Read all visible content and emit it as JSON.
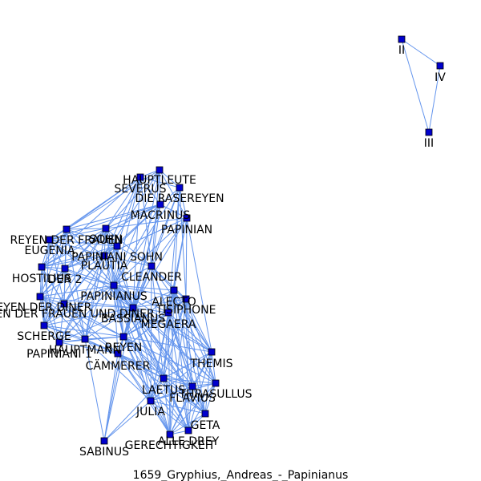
{
  "caption": "1659_Gryphius,_Andreas_-_Papinianus",
  "colors": {
    "edge": "#6495ED",
    "node_fill": "#0000CD",
    "node_stroke": "#000000",
    "text": "#000000"
  },
  "nodes": [
    {
      "id": "HAUPTLEUTE",
      "label": "HAUPTLEUTE"
    },
    {
      "id": "SEVERUS",
      "label": "SEVERUS"
    },
    {
      "id": "DIE_RASEREYEN",
      "label": "DIE RASEREYEN"
    },
    {
      "id": "MACRINUS",
      "label": "MACRINUS"
    },
    {
      "id": "PAPINIAN",
      "label": "PAPINIAN"
    },
    {
      "id": "REYEN_DER_FRAUEN",
      "label": "REYEN DER FRAUEN"
    },
    {
      "id": "SOHN",
      "label": "SOHN"
    },
    {
      "id": "EUGENIA",
      "label": "EUGENIA"
    },
    {
      "id": "PAPINIANI_SOHN",
      "label": "PAPINIANI SOHN"
    },
    {
      "id": "PLAUTIA",
      "label": "PLAUTIA"
    },
    {
      "id": "HOSTILIUS",
      "label": "HOSTILIUS"
    },
    {
      "id": "DER_2",
      "label": "DER 2"
    },
    {
      "id": "CLEANDER",
      "label": "CLEANDER"
    },
    {
      "id": "PAPINIANUS",
      "label": "PAPINIANUS"
    },
    {
      "id": "ALECTO",
      "label": "ALECTO"
    },
    {
      "id": "REYEN_DER_DINER",
      "label": "REYEN DER DINER"
    },
    {
      "id": "TISIPHONE",
      "label": "TISIPHONE"
    },
    {
      "id": "REYEN_DER_FRAUEN_UND_DINER",
      "label": "REYEN DER FRAUEN UND DINER"
    },
    {
      "id": "BASSIANUS",
      "label": "BASSIANUS"
    },
    {
      "id": "MEGAERA",
      "label": "MEGAERA"
    },
    {
      "id": "SCHERGE",
      "label": "SCHERGE"
    },
    {
      "id": "REYEN",
      "label": "REYEN"
    },
    {
      "id": "PAPINIANI_1",
      "label": "PAPINIANI 1"
    },
    {
      "id": "HAUPTMANN",
      "label": "HAUPTMANN"
    },
    {
      "id": "THEMIS",
      "label": "THEMIS"
    },
    {
      "id": "CAMMERER",
      "label": "CÄMMERER"
    },
    {
      "id": "LAETUS",
      "label": "LAETUS"
    },
    {
      "id": "THRASULLUS",
      "label": "THRASULLUS"
    },
    {
      "id": "FLAVIUS",
      "label": "FLAVIUS"
    },
    {
      "id": "JULIA",
      "label": "JULIA"
    },
    {
      "id": "GETA",
      "label": "GETA"
    },
    {
      "id": "ALLE_DREY",
      "label": "ALLE DREY"
    },
    {
      "id": "GERECHTIGKEIT",
      "label": "GERECHTIGKEIT"
    },
    {
      "id": "SABINUS",
      "label": "SABINUS"
    },
    {
      "id": "II",
      "label": "II"
    },
    {
      "id": "IV",
      "label": "IV"
    },
    {
      "id": "III",
      "label": "III"
    }
  ],
  "edges": [
    [
      "II",
      "IV"
    ],
    [
      "IV",
      "III"
    ],
    [
      "II",
      "III"
    ],
    [
      "HAUPTLEUTE",
      "SEVERUS"
    ],
    [
      "HAUPTLEUTE",
      "DIE_RASEREYEN"
    ],
    [
      "HAUPTLEUTE",
      "MACRINUS"
    ],
    [
      "HAUPTLEUTE",
      "SOHN"
    ],
    [
      "HAUPTLEUTE",
      "PLAUTIA"
    ],
    [
      "HAUPTLEUTE",
      "PAPINIANUS"
    ],
    [
      "HAUPTLEUTE",
      "BASSIANUS"
    ],
    [
      "HAUPTLEUTE",
      "CLEANDER"
    ],
    [
      "HAUPTLEUTE",
      "REYEN_DER_FRAUEN"
    ],
    [
      "HAUPTLEUTE",
      "PAPINIAN"
    ],
    [
      "SEVERUS",
      "MACRINUS"
    ],
    [
      "SEVERUS",
      "DIE_RASEREYEN"
    ],
    [
      "SEVERUS",
      "SOHN"
    ],
    [
      "SEVERUS",
      "PLAUTIA"
    ],
    [
      "SEVERUS",
      "PAPINIANUS"
    ],
    [
      "SEVERUS",
      "BASSIANUS"
    ],
    [
      "SEVERUS",
      "REYEN_DER_FRAUEN"
    ],
    [
      "SEVERUS",
      "EUGENIA"
    ],
    [
      "SEVERUS",
      "HOSTILIUS"
    ],
    [
      "SEVERUS",
      "CLEANDER"
    ],
    [
      "SEVERUS",
      "PAPINIANI_SOHN"
    ],
    [
      "DIE_RASEREYEN",
      "MACRINUS"
    ],
    [
      "DIE_RASEREYEN",
      "PAPINIAN"
    ],
    [
      "DIE_RASEREYEN",
      "PAPINIANUS"
    ],
    [
      "DIE_RASEREYEN",
      "ALECTO"
    ],
    [
      "DIE_RASEREYEN",
      "TISIPHONE"
    ],
    [
      "DIE_RASEREYEN",
      "MEGAERA"
    ],
    [
      "DIE_RASEREYEN",
      "BASSIANUS"
    ],
    [
      "DIE_RASEREYEN",
      "CLEANDER"
    ],
    [
      "MACRINUS",
      "PAPINIAN"
    ],
    [
      "MACRINUS",
      "SOHN"
    ],
    [
      "MACRINUS",
      "PLAUTIA"
    ],
    [
      "MACRINUS",
      "PAPINIANUS"
    ],
    [
      "MACRINUS",
      "BASSIANUS"
    ],
    [
      "MACRINUS",
      "CLEANDER"
    ],
    [
      "MACRINUS",
      "PAPINIANI_SOHN"
    ],
    [
      "MACRINUS",
      "REYEN_DER_FRAUEN"
    ],
    [
      "MACRINUS",
      "EUGENIA"
    ],
    [
      "MACRINUS",
      "HOSTILIUS"
    ],
    [
      "MACRINUS",
      "REYEN"
    ],
    [
      "PAPINIAN",
      "CLEANDER"
    ],
    [
      "PAPINIAN",
      "PAPINIANUS"
    ],
    [
      "PAPINIAN",
      "ALECTO"
    ],
    [
      "PAPINIAN",
      "BASSIANUS"
    ],
    [
      "PAPINIAN",
      "TISIPHONE"
    ],
    [
      "PAPINIAN",
      "THEMIS"
    ],
    [
      "PAPINIAN",
      "MEGAERA"
    ],
    [
      "PAPINIAN",
      "PLAUTIA"
    ],
    [
      "PAPINIAN",
      "SOHN"
    ],
    [
      "REYEN_DER_FRAUEN",
      "EUGENIA"
    ],
    [
      "REYEN_DER_FRAUEN",
      "SOHN"
    ],
    [
      "REYEN_DER_FRAUEN",
      "HOSTILIUS"
    ],
    [
      "REYEN_DER_FRAUEN",
      "DER_2"
    ],
    [
      "REYEN_DER_FRAUEN",
      "PLAUTIA"
    ],
    [
      "REYEN_DER_FRAUEN",
      "PAPINIANI_SOHN"
    ],
    [
      "REYEN_DER_FRAUEN",
      "REYEN_DER_DINER"
    ],
    [
      "REYEN_DER_FRAUEN",
      "REYEN_DER_FRAUEN_UND_DINER"
    ],
    [
      "REYEN_DER_FRAUEN",
      "SCHERGE"
    ],
    [
      "REYEN_DER_FRAUEN",
      "PAPINIANUS"
    ],
    [
      "REYEN_DER_FRAUEN",
      "BASSIANUS"
    ],
    [
      "REYEN_DER_FRAUEN",
      "HAUPTMANN"
    ],
    [
      "SOHN",
      "EUGENIA"
    ],
    [
      "SOHN",
      "PAPINIANI_SOHN"
    ],
    [
      "SOHN",
      "PLAUTIA"
    ],
    [
      "SOHN",
      "HOSTILIUS"
    ],
    [
      "SOHN",
      "DER_2"
    ],
    [
      "SOHN",
      "PAPINIANUS"
    ],
    [
      "SOHN",
      "CLEANDER"
    ],
    [
      "SOHN",
      "BASSIANUS"
    ],
    [
      "SOHN",
      "REYEN_DER_DINER"
    ],
    [
      "SOHN",
      "REYEN"
    ],
    [
      "SOHN",
      "SCHERGE"
    ],
    [
      "SOHN",
      "HAUPTMANN"
    ],
    [
      "SOHN",
      "REYEN_DER_FRAUEN_UND_DINER"
    ],
    [
      "EUGENIA",
      "HOSTILIUS"
    ],
    [
      "EUGENIA",
      "DER_2"
    ],
    [
      "EUGENIA",
      "PLAUTIA"
    ],
    [
      "EUGENIA",
      "PAPINIANI_SOHN"
    ],
    [
      "EUGENIA",
      "REYEN_DER_DINER"
    ],
    [
      "EUGENIA",
      "SCHERGE"
    ],
    [
      "EUGENIA",
      "PAPINIANUS"
    ],
    [
      "EUGENIA",
      "BASSIANUS"
    ],
    [
      "EUGENIA",
      "REYEN_DER_FRAUEN_UND_DINER"
    ],
    [
      "PAPINIANI_SOHN",
      "PLAUTIA"
    ],
    [
      "PAPINIANI_SOHN",
      "PAPINIANUS"
    ],
    [
      "PAPINIANI_SOHN",
      "CLEANDER"
    ],
    [
      "PAPINIANI_SOHN",
      "BASSIANUS"
    ],
    [
      "PAPINIANI_SOHN",
      "HOSTILIUS"
    ],
    [
      "PAPINIANI_SOHN",
      "DER_2"
    ],
    [
      "PAPINIANI_SOHN",
      "REYEN"
    ],
    [
      "PAPINIANI_SOHN",
      "HAUPTMANN"
    ],
    [
      "PAPINIANI_SOHN",
      "PAPINIANI_1"
    ],
    [
      "PLAUTIA",
      "HOSTILIUS"
    ],
    [
      "PLAUTIA",
      "DER_2"
    ],
    [
      "PLAUTIA",
      "PAPINIANUS"
    ],
    [
      "PLAUTIA",
      "CLEANDER"
    ],
    [
      "PLAUTIA",
      "BASSIANUS"
    ],
    [
      "PLAUTIA",
      "REYEN"
    ],
    [
      "PLAUTIA",
      "REYEN_DER_DINER"
    ],
    [
      "PLAUTIA",
      "SCHERGE"
    ],
    [
      "PLAUTIA",
      "HAUPTMANN"
    ],
    [
      "PLAUTIA",
      "REYEN_DER_FRAUEN_UND_DINER"
    ],
    [
      "PLAUTIA",
      "PAPINIANI_1"
    ],
    [
      "HOSTILIUS",
      "DER_2"
    ],
    [
      "HOSTILIUS",
      "REYEN_DER_DINER"
    ],
    [
      "HOSTILIUS",
      "REYEN_DER_FRAUEN_UND_DINER"
    ],
    [
      "HOSTILIUS",
      "SCHERGE"
    ],
    [
      "HOSTILIUS",
      "PAPINIANUS"
    ],
    [
      "HOSTILIUS",
      "PAPINIANI_1"
    ],
    [
      "HOSTILIUS",
      "HAUPTMANN"
    ],
    [
      "DER_2",
      "REYEN_DER_DINER"
    ],
    [
      "DER_2",
      "PAPINIANUS"
    ],
    [
      "DER_2",
      "REYEN_DER_FRAUEN_UND_DINER"
    ],
    [
      "DER_2",
      "SCHERGE"
    ],
    [
      "DER_2",
      "BASSIANUS"
    ],
    [
      "DER_2",
      "HAUPTMANN"
    ],
    [
      "CLEANDER",
      "PAPINIANUS"
    ],
    [
      "CLEANDER",
      "BASSIANUS"
    ],
    [
      "CLEANDER",
      "ALECTO"
    ],
    [
      "CLEANDER",
      "TISIPHONE"
    ],
    [
      "CLEANDER",
      "MEGAERA"
    ],
    [
      "CLEANDER",
      "REYEN"
    ],
    [
      "CLEANDER",
      "THEMIS"
    ],
    [
      "CLEANDER",
      "LAETUS"
    ],
    [
      "CLEANDER",
      "JULIA"
    ],
    [
      "CLEANDER",
      "FLAVIUS"
    ],
    [
      "CLEANDER",
      "CAMMERER"
    ],
    [
      "PAPINIANUS",
      "BASSIANUS"
    ],
    [
      "PAPINIANUS",
      "ALECTO"
    ],
    [
      "PAPINIANUS",
      "TISIPHONE"
    ],
    [
      "PAPINIANUS",
      "MEGAERA"
    ],
    [
      "PAPINIANUS",
      "REYEN"
    ],
    [
      "PAPINIANUS",
      "HAUPTMANN"
    ],
    [
      "PAPINIANUS",
      "CAMMERER"
    ],
    [
      "PAPINIANUS",
      "THEMIS"
    ],
    [
      "PAPINIANUS",
      "LAETUS"
    ],
    [
      "PAPINIANUS",
      "THRASULLUS"
    ],
    [
      "PAPINIANUS",
      "FLAVIUS"
    ],
    [
      "PAPINIANUS",
      "JULIA"
    ],
    [
      "PAPINIANUS",
      "GETA"
    ],
    [
      "PAPINIANUS",
      "ALLE_DREY"
    ],
    [
      "PAPINIANUS",
      "GERECHTIGKEIT"
    ],
    [
      "PAPINIANUS",
      "REYEN_DER_DINER"
    ],
    [
      "PAPINIANUS",
      "SCHERGE"
    ],
    [
      "PAPINIANUS",
      "PAPINIANI_1"
    ],
    [
      "PAPINIANUS",
      "REYEN_DER_FRAUEN_UND_DINER"
    ],
    [
      "ALECTO",
      "TISIPHONE"
    ],
    [
      "ALECTO",
      "MEGAERA"
    ],
    [
      "ALECTO",
      "BASSIANUS"
    ],
    [
      "ALECTO",
      "REYEN"
    ],
    [
      "ALECTO",
      "THEMIS"
    ],
    [
      "ALECTO",
      "LAETUS"
    ],
    [
      "ALECTO",
      "FLAVIUS"
    ],
    [
      "ALECTO",
      "THRASULLUS"
    ],
    [
      "ALECTO",
      "GETA"
    ],
    [
      "ALECTO",
      "JULIA"
    ],
    [
      "ALECTO",
      "ALLE_DREY"
    ],
    [
      "ALECTO",
      "GERECHTIGKEIT"
    ],
    [
      "TISIPHONE",
      "MEGAERA"
    ],
    [
      "TISIPHONE",
      "BASSIANUS"
    ],
    [
      "TISIPHONE",
      "REYEN"
    ],
    [
      "TISIPHONE",
      "THEMIS"
    ],
    [
      "TISIPHONE",
      "LAETUS"
    ],
    [
      "TISIPHONE",
      "THRASULLUS"
    ],
    [
      "TISIPHONE",
      "FLAVIUS"
    ],
    [
      "TISIPHONE",
      "GETA"
    ],
    [
      "TISIPHONE",
      "JULIA"
    ],
    [
      "TISIPHONE",
      "ALLE_DREY"
    ],
    [
      "TISIPHONE",
      "GERECHTIGKEIT"
    ],
    [
      "TISIPHONE",
      "CAMMERER"
    ],
    [
      "MEGAERA",
      "BASSIANUS"
    ],
    [
      "MEGAERA",
      "REYEN"
    ],
    [
      "MEGAERA",
      "THEMIS"
    ],
    [
      "MEGAERA",
      "LAETUS"
    ],
    [
      "MEGAERA",
      "THRASULLUS"
    ],
    [
      "MEGAERA",
      "FLAVIUS"
    ],
    [
      "MEGAERA",
      "GETA"
    ],
    [
      "MEGAERA",
      "JULIA"
    ],
    [
      "MEGAERA",
      "ALLE_DREY"
    ],
    [
      "MEGAERA",
      "GERECHTIGKEIT"
    ],
    [
      "MEGAERA",
      "CAMMERER"
    ],
    [
      "REYEN_DER_DINER",
      "REYEN_DER_FRAUEN_UND_DINER"
    ],
    [
      "REYEN_DER_DINER",
      "SCHERGE"
    ],
    [
      "REYEN_DER_DINER",
      "PAPINIANI_1"
    ],
    [
      "REYEN_DER_DINER",
      "HAUPTMANN"
    ],
    [
      "REYEN_DER_DINER",
      "BASSIANUS"
    ],
    [
      "REYEN_DER_DINER",
      "REYEN"
    ],
    [
      "REYEN_DER_DINER",
      "CAMMERER"
    ],
    [
      "REYEN_DER_FRAUEN_UND_DINER",
      "SCHERGE"
    ],
    [
      "REYEN_DER_FRAUEN_UND_DINER",
      "PAPINIANI_1"
    ],
    [
      "REYEN_DER_FRAUEN_UND_DINER",
      "HAUPTMANN"
    ],
    [
      "REYEN_DER_FRAUEN_UND_DINER",
      "BASSIANUS"
    ],
    [
      "REYEN_DER_FRAUEN_UND_DINER",
      "REYEN"
    ],
    [
      "REYEN_DER_FRAUEN_UND_DINER",
      "CAMMERER"
    ],
    [
      "BASSIANUS",
      "REYEN"
    ],
    [
      "BASSIANUS",
      "HAUPTMANN"
    ],
    [
      "BASSIANUS",
      "CAMMERER"
    ],
    [
      "BASSIANUS",
      "THEMIS"
    ],
    [
      "BASSIANUS",
      "LAETUS"
    ],
    [
      "BASSIANUS",
      "THRASULLUS"
    ],
    [
      "BASSIANUS",
      "FLAVIUS"
    ],
    [
      "BASSIANUS",
      "JULIA"
    ],
    [
      "BASSIANUS",
      "GETA"
    ],
    [
      "BASSIANUS",
      "ALLE_DREY"
    ],
    [
      "BASSIANUS",
      "GERECHTIGKEIT"
    ],
    [
      "BASSIANUS",
      "SABINUS"
    ],
    [
      "BASSIANUS",
      "SCHERGE"
    ],
    [
      "BASSIANUS",
      "PAPINIANI_1"
    ],
    [
      "SCHERGE",
      "PAPINIANI_1"
    ],
    [
      "SCHERGE",
      "HAUPTMANN"
    ],
    [
      "SCHERGE",
      "REYEN"
    ],
    [
      "SCHERGE",
      "CAMMERER"
    ],
    [
      "PAPINIANI_1",
      "HAUPTMANN"
    ],
    [
      "PAPINIANI_1",
      "CAMMERER"
    ],
    [
      "PAPINIANI_1",
      "REYEN"
    ],
    [
      "HAUPTMANN",
      "REYEN"
    ],
    [
      "HAUPTMANN",
      "CAMMERER"
    ],
    [
      "HAUPTMANN",
      "SABINUS"
    ],
    [
      "HAUPTMANN",
      "JULIA"
    ],
    [
      "HAUPTMANN",
      "LAETUS"
    ],
    [
      "REYEN",
      "CAMMERER"
    ],
    [
      "REYEN",
      "THEMIS"
    ],
    [
      "REYEN",
      "LAETUS"
    ],
    [
      "REYEN",
      "THRASULLUS"
    ],
    [
      "REYEN",
      "FLAVIUS"
    ],
    [
      "REYEN",
      "JULIA"
    ],
    [
      "REYEN",
      "GETA"
    ],
    [
      "REYEN",
      "ALLE_DREY"
    ],
    [
      "REYEN",
      "GERECHTIGKEIT"
    ],
    [
      "REYEN",
      "SABINUS"
    ],
    [
      "CAMMERER",
      "LAETUS"
    ],
    [
      "CAMMERER",
      "JULIA"
    ],
    [
      "CAMMERER",
      "FLAVIUS"
    ],
    [
      "CAMMERER",
      "SABINUS"
    ],
    [
      "CAMMERER",
      "GERECHTIGKEIT"
    ],
    [
      "CAMMERER",
      "ALLE_DREY"
    ],
    [
      "CAMMERER",
      "GETA"
    ],
    [
      "THEMIS",
      "LAETUS"
    ],
    [
      "THEMIS",
      "THRASULLUS"
    ],
    [
      "THEMIS",
      "FLAVIUS"
    ],
    [
      "THEMIS",
      "JULIA"
    ],
    [
      "THEMIS",
      "GETA"
    ],
    [
      "THEMIS",
      "ALLE_DREY"
    ],
    [
      "THEMIS",
      "GERECHTIGKEIT"
    ],
    [
      "LAETUS",
      "THRASULLUS"
    ],
    [
      "LAETUS",
      "FLAVIUS"
    ],
    [
      "LAETUS",
      "JULIA"
    ],
    [
      "LAETUS",
      "GETA"
    ],
    [
      "LAETUS",
      "ALLE_DREY"
    ],
    [
      "LAETUS",
      "GERECHTIGKEIT"
    ],
    [
      "LAETUS",
      "SABINUS"
    ],
    [
      "THRASULLUS",
      "FLAVIUS"
    ],
    [
      "THRASULLUS",
      "JULIA"
    ],
    [
      "THRASULLUS",
      "GETA"
    ],
    [
      "THRASULLUS",
      "ALLE_DREY"
    ],
    [
      "THRASULLUS",
      "GERECHTIGKEIT"
    ],
    [
      "FLAVIUS",
      "JULIA"
    ],
    [
      "FLAVIUS",
      "GETA"
    ],
    [
      "FLAVIUS",
      "ALLE_DREY"
    ],
    [
      "FLAVIUS",
      "GERECHTIGKEIT"
    ],
    [
      "JULIA",
      "GETA"
    ],
    [
      "JULIA",
      "ALLE_DREY"
    ],
    [
      "JULIA",
      "GERECHTIGKEIT"
    ],
    [
      "JULIA",
      "SABINUS"
    ],
    [
      "GETA",
      "ALLE_DREY"
    ],
    [
      "GETA",
      "GERECHTIGKEIT"
    ],
    [
      "ALLE_DREY",
      "GERECHTIGKEIT"
    ]
  ]
}
